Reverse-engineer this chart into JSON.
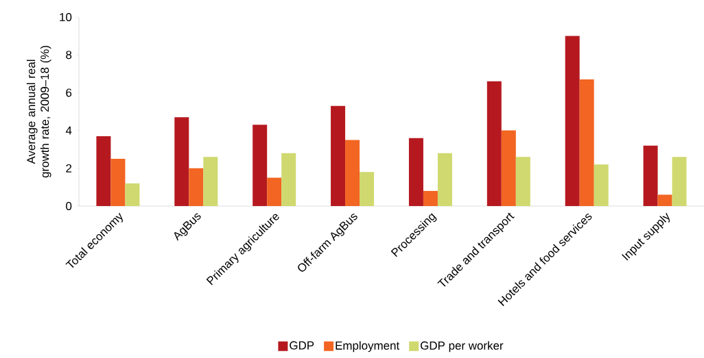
{
  "chart_data": {
    "type": "bar",
    "ylabel": "Average annual real growth rate, 2009–18 (%)",
    "categories": [
      "Total economy",
      "AgBus",
      "Primary agriculture",
      "Off-farm AgBus",
      "Processing",
      "Trade and transport",
      "Hotels and food services",
      "Input supply"
    ],
    "series": [
      {
        "name": "GDP",
        "color": "#b5191f",
        "values": [
          3.7,
          4.7,
          4.3,
          5.3,
          3.6,
          6.6,
          9.0,
          3.2
        ]
      },
      {
        "name": "Employment",
        "color": "#f26522",
        "values": [
          2.5,
          2.0,
          1.5,
          3.5,
          0.8,
          4.0,
          6.7,
          0.6
        ]
      },
      {
        "name": "GDP per worker",
        "color": "#cfd96f",
        "values": [
          1.2,
          2.6,
          2.8,
          1.8,
          2.8,
          2.6,
          2.2,
          2.6
        ]
      }
    ],
    "ylim": [
      0,
      10
    ],
    "yticks": [
      0,
      2,
      4,
      6,
      8,
      10
    ],
    "legend": "bottom"
  }
}
